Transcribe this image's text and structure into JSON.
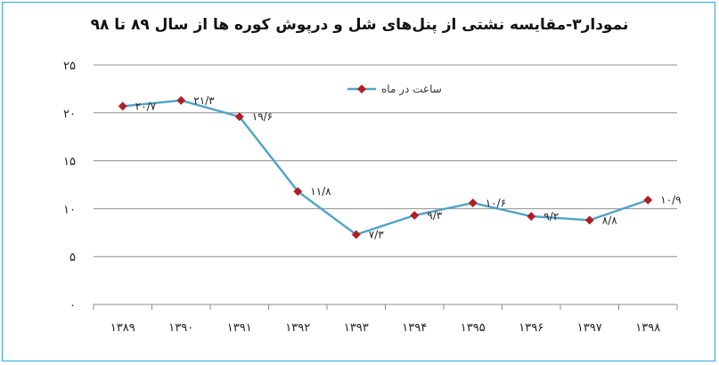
{
  "chart_data": {
    "type": "line",
    "title": "نمودار۳-مقایسه نشتی از پنل‌های شل و درپوش کوره ها از سال ۸۹ تا ۹۸",
    "categories": [
      "۱۳۸۹",
      "۱۳۹۰",
      "۱۳۹۱",
      "۱۳۹۲",
      "۱۳۹۳",
      "۱۳۹۴",
      "۱۳۹۵",
      "۱۳۹۶",
      "۱۳۹۷",
      "۱۳۹۸"
    ],
    "series": [
      {
        "name": "ساعت در ماه",
        "values": [
          20.7,
          21.3,
          19.6,
          11.8,
          7.3,
          9.3,
          10.6,
          9.2,
          8.8,
          10.9
        ],
        "labels": [
          "۲۰/۷",
          "۲۱/۳",
          "۱۹/۶",
          "۱۱/۸",
          "۷/۳",
          "۹/۳",
          "۱۰/۶",
          "۹/۲",
          "۸/۸",
          "۱۰/۹"
        ],
        "color": "#4fa3c7",
        "marker_color": "#b01e23"
      }
    ],
    "yticks": [
      "۰",
      "۵",
      "۱۰",
      "۱۵",
      "۲۰",
      "۲۵"
    ],
    "ylim": [
      0,
      25
    ],
    "grid": true,
    "legend": "top-center"
  }
}
